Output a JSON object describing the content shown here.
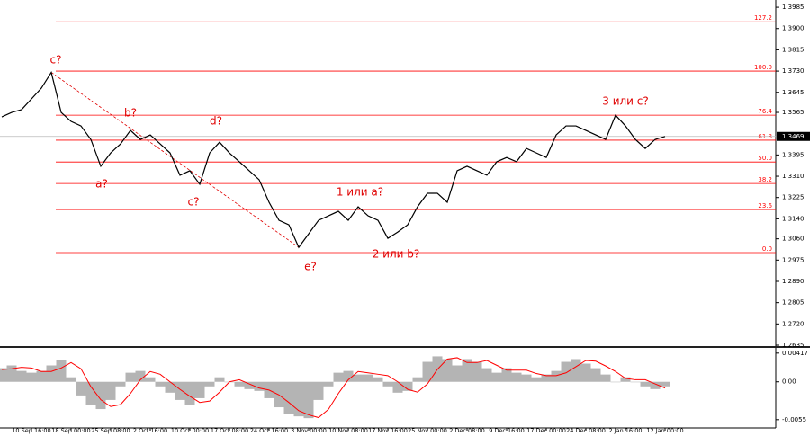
{
  "chart_data": [
    {
      "type": "line",
      "categories": [
        null,
        null,
        null,
        "10 Sep 16:00",
        null,
        null,
        null,
        "18 Sep 00:00",
        null,
        null,
        null,
        "25 Sep 08:00",
        null,
        null,
        null,
        "2 Oct 16:00",
        null,
        null,
        null,
        "10 Oct 00:00",
        null,
        null,
        null,
        "17 Oct 08:00",
        null,
        null,
        null,
        "24 Oct 16:00",
        null,
        null,
        null,
        "3 Nov 00:00",
        null,
        null,
        null,
        "10 Nov 08:00",
        null,
        null,
        null,
        "17 Nov 16:00",
        null,
        null,
        null,
        "25 Nov 00:00",
        null,
        null,
        null,
        "2 Dec 08:00",
        null,
        null,
        null,
        "9 Dec 16:00",
        null,
        null,
        null,
        "17 Dec 00:00",
        null,
        null,
        null,
        "24 Dec 08:00",
        null,
        null,
        null,
        "2 Jan 16:00",
        null,
        null,
        null,
        "12 Jan 00:00"
      ],
      "series": [
        {
          "color": "#000000",
          "values": [
            1.3547,
            1.3565,
            1.3576,
            1.3619,
            1.3662,
            1.3725,
            1.3565,
            1.3529,
            1.3511,
            1.3457,
            1.335,
            1.3403,
            1.3439,
            1.3493,
            1.3457,
            1.3475,
            1.3439,
            1.3403,
            1.3314,
            1.3332,
            1.3278,
            1.3403,
            1.3446,
            1.3403,
            1.3368,
            1.3332,
            1.3296,
            1.3206,
            1.3134,
            1.3116,
            1.3026,
            1.308,
            1.3134,
            1.3152,
            1.317,
            1.3134,
            1.3188,
            1.3152,
            1.3134,
            1.3062,
            1.3087,
            1.3116,
            1.3188,
            1.3242,
            1.3242,
            1.3206,
            1.3332,
            1.335,
            1.3332,
            1.3314,
            1.3368,
            1.3385,
            1.3368,
            1.3421,
            1.3403,
            1.3385,
            1.3475,
            1.3511,
            1.3511,
            1.3493,
            1.3475,
            1.3457,
            1.3554,
            1.3511,
            1.3457,
            1.3421,
            1.3457,
            1.3469
          ]
        }
      ],
      "ylim": [
        1.2635,
        1.4014
      ],
      "yticks": [
        1.3985,
        {
          "value": 1.39,
          "label": "1.3900"
        },
        1.3815,
        {
          "value": 1.373,
          "label": "1.3730"
        },
        1.3645,
        1.3565,
        1.3395,
        {
          "value": 1.331,
          "label": "1.3310"
        },
        1.3225,
        {
          "value": 1.314,
          "label": "1.3140"
        },
        {
          "value": 1.306,
          "label": "1.3060"
        },
        1.2975,
        {
          "value": 1.289,
          "label": "1.2890"
        },
        1.2805,
        {
          "value": 1.272,
          "label": "1.2720"
        },
        1.2635
      ],
      "last_price": 1.3469,
      "fib_color": "#ff0000",
      "fib_levels": [
        {
          "value": 1.3927,
          "label": "127.2"
        },
        {
          "value": 1.373,
          "label": "100.0"
        },
        {
          "value": 1.3554,
          "label": "76.4"
        },
        {
          "value": 1.3454,
          "label": "61.8"
        },
        {
          "value": 1.3367,
          "label": "50.0"
        },
        {
          "value": 1.3281,
          "label": "38.2"
        },
        {
          "value": 1.3177,
          "label": "23.6"
        },
        {
          "value": 1.3005,
          "label": "0.0"
        }
      ],
      "annotations": [
        "c?",
        "b?",
        "d?",
        "a?",
        "c?",
        "e?",
        "1 или a?",
        "2 или b?",
        "3 или c?"
      ]
    },
    {
      "type": "bar",
      "series": [
        {
          "color": "#b4b4b4",
          "values": [
            0.00198,
            0.00238,
            0.00158,
            0.00132,
            0.00158,
            0.00238,
            0.00317,
            0.00066,
            -0.00198,
            -0.0033,
            -0.00396,
            -0.00264,
            -0.00066,
            0.00132,
            0.00158,
            0.00066,
            -0.00066,
            -0.00158,
            -0.00264,
            -0.0033,
            -0.00238,
            -0.00066,
            0.00066,
            0,
            -0.00066,
            -0.00106,
            -0.00132,
            -0.00238,
            -0.0037,
            -0.00462,
            -0.00502,
            -0.00528,
            -0.00264,
            -0.00066,
            0.00132,
            0.00158,
            0.00106,
            0.00106,
            0.00066,
            -0.00066,
            -0.00158,
            -0.00132,
            0.00066,
            0.0029,
            0.0037,
            0.0033,
            0.00238,
            0.0033,
            0.0029,
            0.00198,
            0.00132,
            0.00198,
            0.00132,
            0.00106,
            0.00066,
            0.00106,
            0.00158,
            0.0029,
            0.0033,
            0.00264,
            0.00198,
            0.00106,
            0,
            0.00066,
            0,
            -0.00066,
            -0.00106,
            -0.00066
          ]
        },
        {
          "color": "#ff0000",
          "type": "line",
          "values": [
            0.0018,
            0.0019,
            0.0021,
            0.002,
            0.0015,
            0.0015,
            0.002,
            0.0028,
            0.0019,
            -0.0007,
            -0.0026,
            -0.0036,
            -0.0033,
            -0.0017,
            0.0003,
            0.0015,
            0.0011,
            0,
            -0.0011,
            -0.0021,
            -0.003,
            -0.0028,
            -0.0015,
            0,
            0.0003,
            -0.0003,
            -0.0009,
            -0.0012,
            -0.0019,
            -0.003,
            -0.0042,
            -0.0048,
            -0.0052,
            -0.004,
            -0.0017,
            0.0003,
            0.0015,
            0.0013,
            0.0011,
            0.0009,
            0,
            -0.0011,
            -0.0015,
            -0.0003,
            0.0018,
            0.0033,
            0.0035,
            0.0028,
            0.0028,
            0.0031,
            0.0024,
            0.0017,
            0.0017,
            0.0017,
            0.0012,
            0.0009,
            0.0009,
            0.0013,
            0.0022,
            0.0031,
            0.003,
            0.0023,
            0.0015,
            0.0005,
            0.0003,
            0.0003,
            -0.0003,
            -0.0009
          ]
        }
      ],
      "ylim": [
        -0.0067,
        0.0048
      ],
      "yticks": [
        0.00417,
        {
          "value": 0,
          "label": "0.00"
        },
        -0.0055
      ]
    }
  ]
}
